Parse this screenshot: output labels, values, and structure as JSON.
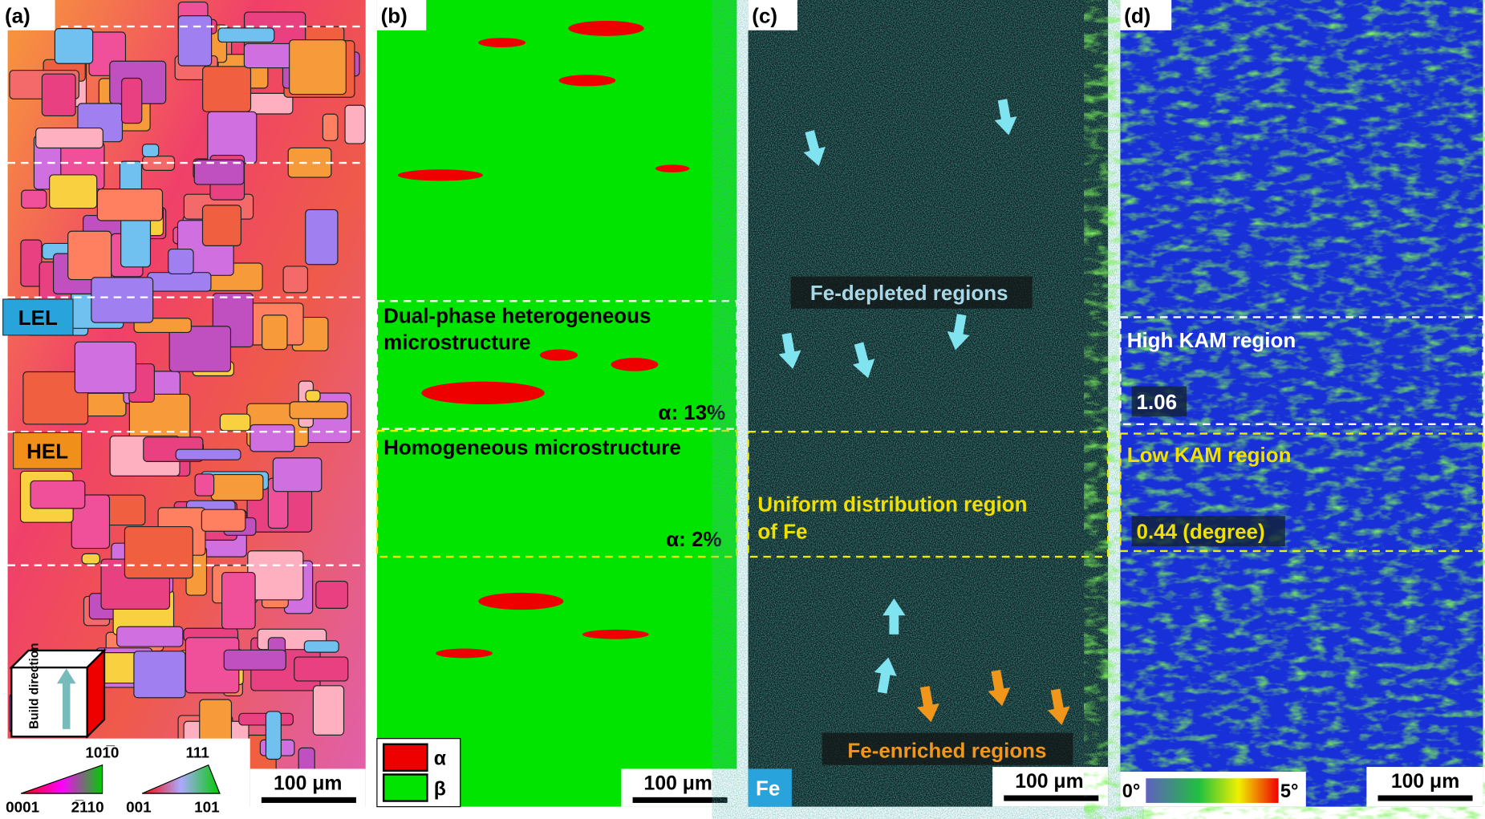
{
  "panel_a": {
    "label": "(a)",
    "tag_top": "LEL",
    "tag_bottom": "HEL",
    "build_direction": "Build direction",
    "ipf_hex": {
      "top": "101̅0",
      "left": "0001",
      "right": "2̅110"
    },
    "ipf_cubic": {
      "top": "111",
      "left": "001",
      "right": "101"
    },
    "scale_bar": "100 μm"
  },
  "panel_b": {
    "label": "(b)",
    "region_top": "Dual-phase heterogeneous microstructure",
    "fraction_top": "α: 13%",
    "region_bottom": "Homogeneous microstructure",
    "fraction_bottom": "α: 2%",
    "legend": [
      "α",
      "β"
    ],
    "scale_bar": "100 μm"
  },
  "panel_c": {
    "label": "(c)",
    "depleted": "Fe-depleted regions",
    "uniform": "Uniform distribution region of Fe",
    "enriched": "Fe-enriched regions",
    "element": "Fe",
    "scale_bar": "100 μm"
  },
  "panel_d": {
    "label": "(d)",
    "high": "High KAM region",
    "high_value": "1.06",
    "low": "Low KAM region",
    "low_value": "0.44 (degree)",
    "scale_min": "0°",
    "scale_max": "5°",
    "scale_bar": "100 μm"
  }
}
